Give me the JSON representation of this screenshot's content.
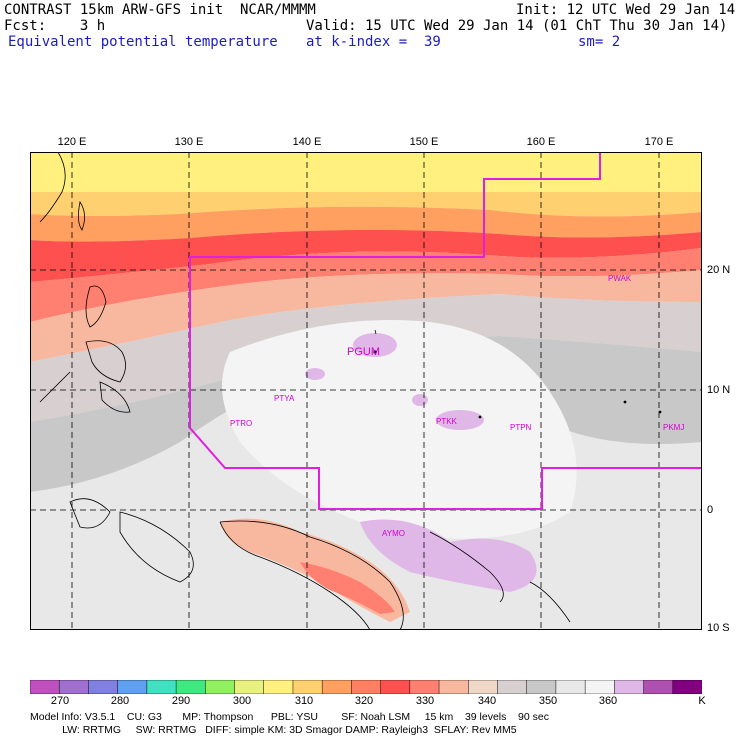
{
  "header": {
    "line1_left": "CONTRAST 15km ARW-GFS init  NCAR/MMMM",
    "line1_right": "Init: 12 UTC Wed 29 Jan 14",
    "line2_left": "Fcst:    3 h",
    "line2_right": "Valid: 15 UTC Wed 29 Jan 14 (01 ChT Thu 30 Jan 14)",
    "line3_left": "Equivalent potential temperature",
    "line3_mid": "at k-index =  39",
    "line3_right": "sm= 2"
  },
  "map": {
    "lon_labels": [
      "120 E",
      "130 E",
      "140 E",
      "150 E",
      "160 E",
      "170 E"
    ],
    "lat_labels": [
      "20 N",
      "10 N",
      "0",
      "10 S"
    ],
    "stations": [
      "PGUM",
      "PWAK",
      "PTYA",
      "PTRO",
      "PTKK",
      "PTPN",
      "PKMJ",
      "AYMO"
    ],
    "boundary_color": "#e020e0"
  },
  "colorbar": {
    "labels": [
      "270",
      "280",
      "290",
      "300",
      "310",
      "320",
      "330",
      "340",
      "350",
      "360"
    ],
    "unit": "K",
    "colors": [
      "#c050c0",
      "#a070d0",
      "#8080e0",
      "#60a0f0",
      "#40e0c0",
      "#40e880",
      "#90f060",
      "#e8f080",
      "#fff080",
      "#ffd070",
      "#ffa060",
      "#ff8060",
      "#ff5050",
      "#ff8070",
      "#f8b8a0",
      "#f0d8c8",
      "#d8d0d0",
      "#c8c8c8",
      "#e8e8e8",
      "#f4f4f4",
      "#e0b8e8",
      "#b050b0",
      "#800080"
    ]
  },
  "footer": {
    "line1": "Model Info: V3.5.1    CU: G3       MP: Thompson      PBL: YSU        SF: Noah LSM     15 km    39 levels    90 sec",
    "line2": "           LW: RRTMG     SW: RRTMG   DIFF: simple KM: 3D Smagor DAMP: Rayleigh3  SFLAY: Rev MM5"
  }
}
